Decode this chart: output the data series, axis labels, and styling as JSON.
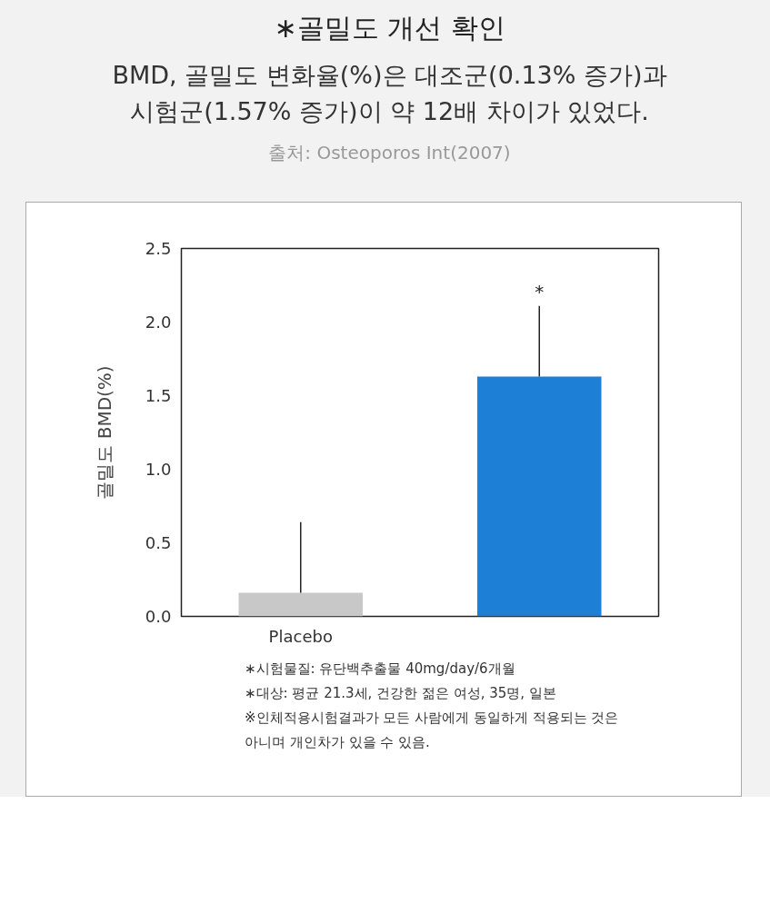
{
  "chart_data": {
    "type": "bar",
    "title": "∗골밀도 개선 확인",
    "subtitle": "BMD, 골밀도 변화율(%)은 대조군(0.13% 증가)과\n시험군(1.57% 증가)이 약 12배 차이가 있었다.",
    "ylabel": "골밀도 BMD(%)",
    "categories": [
      "Placebo",
      null
    ],
    "values": [
      0.16,
      1.63
    ],
    "colors": [
      "#c8c8c8",
      "#1e7fd6"
    ],
    "errors": [
      [
        0.16,
        0.64
      ],
      [
        1.63,
        2.11
      ]
    ],
    "ylim": [
      0,
      2.5
    ],
    "yticks": [
      {
        "value": 0,
        "label": "0.0"
      },
      {
        "value": 0.5,
        "label": "0.5"
      },
      {
        "value": 1,
        "label": "1.0"
      },
      {
        "value": 1.5,
        "label": "1.5"
      },
      {
        "value": 2,
        "label": "2.0"
      },
      {
        "value": 2.5,
        "label": "2.5"
      }
    ],
    "grid": false,
    "annotations": [
      "출처: Osteoporos Int(2007)",
      "*",
      "∗시험물질: 유단백추출물 40mg/day/6개월",
      "∗대상: 평균 21.3세, 건강한 젊은 여성, 35명, 일본",
      "※인체적용시험결과가 모든 사람에게 동일하게 적용되는 것은\n아니며 개인차가 있을 수 있음."
    ]
  }
}
